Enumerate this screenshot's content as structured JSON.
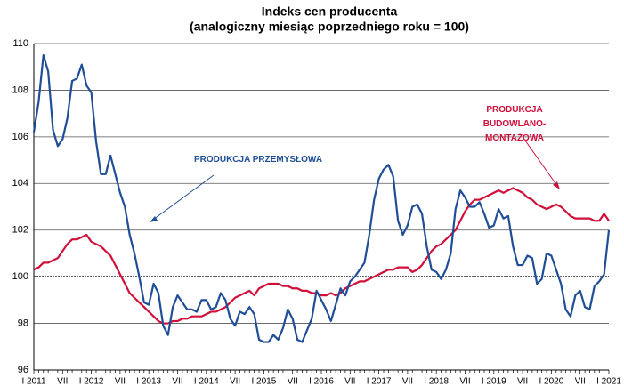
{
  "chart_data": {
    "type": "line",
    "title": "Indeks cen producenta",
    "subtitle": "(analogiczny miesiąc poprzedniego roku = 100)",
    "categories": [
      "I 2011",
      null,
      null,
      null,
      null,
      null,
      "VII",
      null,
      null,
      null,
      null,
      null,
      "I 2012",
      null,
      null,
      null,
      null,
      null,
      "VII",
      null,
      null,
      null,
      null,
      null,
      "I 2013",
      null,
      null,
      null,
      null,
      null,
      "VII",
      null,
      null,
      null,
      null,
      null,
      "I 2014",
      null,
      null,
      null,
      null,
      null,
      "VII",
      null,
      null,
      null,
      null,
      null,
      "I 2015",
      null,
      null,
      null,
      null,
      null,
      "VII",
      null,
      null,
      null,
      null,
      null,
      "I 2016",
      null,
      null,
      null,
      null,
      null,
      "VII",
      null,
      null,
      null,
      null,
      null,
      "I 2017",
      null,
      null,
      null,
      null,
      null,
      "VII",
      null,
      null,
      null,
      null,
      null,
      "I 2018",
      null,
      null,
      null,
      null,
      null,
      "VII",
      null,
      null,
      null,
      null,
      null,
      "I 2019",
      null,
      null,
      null,
      null,
      null,
      "VII",
      null,
      null,
      null,
      null,
      null,
      "I 2020",
      null,
      null,
      null,
      null,
      null,
      "VII",
      null,
      null,
      null,
      null,
      null,
      "I 2021"
    ],
    "series": [
      {
        "name": "PRODUKCJA PRZEMYSŁOWA",
        "color": "#1f4e96",
        "values": [
          106.2,
          107.5,
          109.5,
          108.8,
          106.3,
          105.6,
          105.9,
          106.8,
          108.4,
          108.5,
          109.1,
          108.2,
          107.9,
          105.8,
          104.4,
          104.4,
          105.2,
          104.4,
          103.6,
          103.0,
          101.8,
          101.0,
          100.0,
          98.9,
          98.8,
          99.7,
          99.3,
          97.9,
          97.5,
          98.7,
          99.2,
          98.9,
          98.6,
          98.6,
          98.5,
          99.0,
          99.0,
          98.6,
          98.7,
          99.3,
          99.0,
          98.2,
          97.9,
          98.5,
          98.4,
          98.7,
          98.4,
          97.3,
          97.2,
          97.2,
          97.5,
          97.3,
          97.8,
          98.6,
          98.2,
          97.3,
          97.2,
          97.7,
          98.2,
          99.4,
          99.0,
          98.6,
          98.1,
          98.8,
          99.5,
          99.2,
          99.8,
          100.0,
          100.3,
          100.6,
          101.8,
          103.3,
          104.2,
          104.6,
          104.8,
          104.3,
          102.4,
          101.8,
          102.2,
          103.0,
          103.1,
          102.7,
          101.3,
          100.3,
          100.2,
          99.9,
          100.3,
          101.0,
          102.9,
          103.7,
          103.4,
          103.0,
          103.0,
          103.2,
          102.7,
          102.1,
          102.2,
          102.9,
          102.5,
          102.6,
          101.3,
          100.5,
          100.5,
          100.9,
          100.8,
          99.7,
          99.9,
          101.0,
          100.9,
          100.3,
          99.7,
          98.6,
          98.3,
          99.2,
          99.4,
          98.7,
          98.6,
          99.6,
          99.8,
          100.1,
          102.0
        ]
      },
      {
        "name": "PRODUKCJA BUDOWLANO-MONTAŻOWA",
        "color": "#d0103a",
        "values": [
          100.3,
          100.4,
          100.6,
          100.6,
          100.7,
          100.8,
          101.1,
          101.4,
          101.6,
          101.6,
          101.7,
          101.8,
          101.5,
          101.4,
          101.3,
          101.1,
          100.9,
          100.5,
          100.1,
          99.7,
          99.3,
          99.1,
          98.9,
          98.7,
          98.5,
          98.3,
          98.1,
          98.0,
          98.0,
          98.1,
          98.1,
          98.2,
          98.2,
          98.3,
          98.3,
          98.3,
          98.4,
          98.5,
          98.5,
          98.6,
          98.7,
          98.9,
          99.1,
          99.2,
          99.3,
          99.4,
          99.2,
          99.5,
          99.6,
          99.7,
          99.7,
          99.7,
          99.6,
          99.6,
          99.5,
          99.5,
          99.4,
          99.4,
          99.3,
          99.3,
          99.2,
          99.2,
          99.3,
          99.2,
          99.3,
          99.5,
          99.6,
          99.7,
          99.8,
          99.8,
          99.9,
          100.0,
          100.1,
          100.2,
          100.3,
          100.3,
          100.4,
          100.4,
          100.4,
          100.2,
          100.3,
          100.5,
          100.8,
          101.1,
          101.3,
          101.4,
          101.6,
          101.8,
          102.0,
          102.4,
          102.8,
          103.1,
          103.3,
          103.3,
          103.4,
          103.5,
          103.6,
          103.7,
          103.6,
          103.7,
          103.8,
          103.7,
          103.6,
          103.4,
          103.3,
          103.1,
          103.0,
          102.9,
          103.0,
          103.1,
          103.0,
          102.8,
          102.6,
          102.5,
          102.5,
          102.5,
          102.5,
          102.4,
          102.4,
          102.7,
          102.4
        ]
      }
    ],
    "ylim": [
      96,
      110
    ],
    "yticks": [
      96,
      98,
      100,
      102,
      104,
      106,
      108,
      110
    ],
    "grid": true
  }
}
